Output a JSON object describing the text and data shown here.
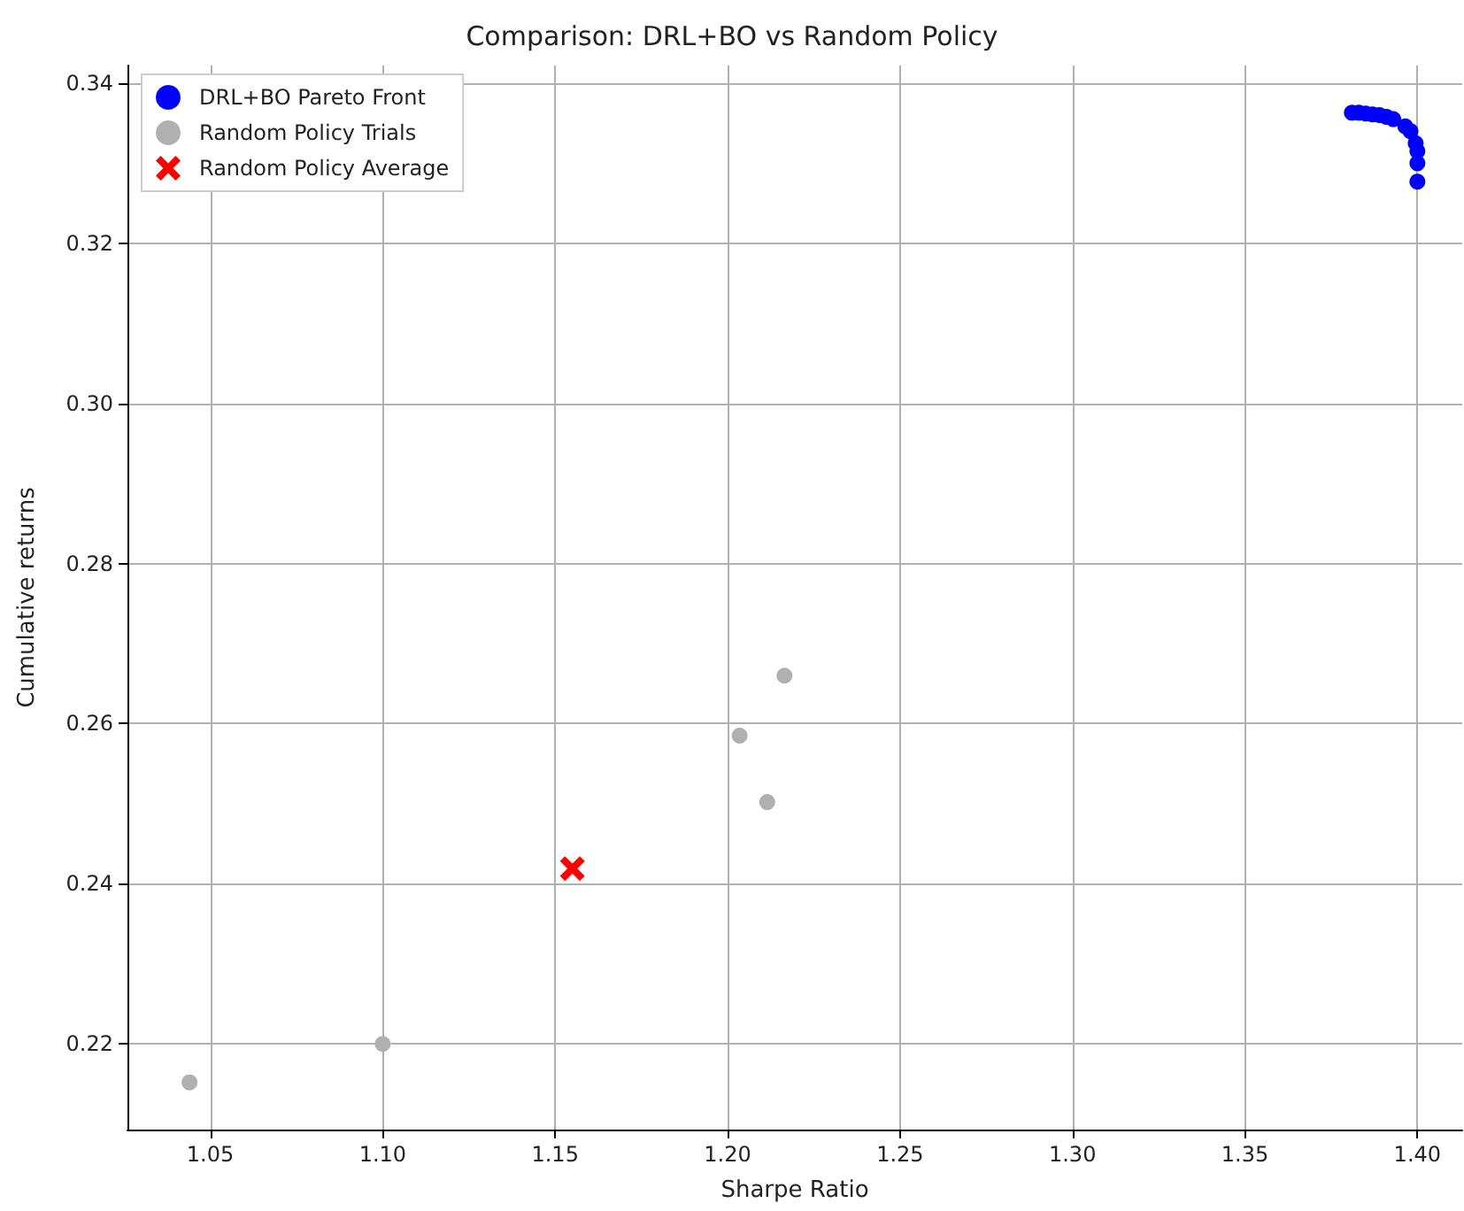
{
  "chart_data": {
    "type": "scatter",
    "title": "Comparison: DRL+BO vs Random Policy",
    "xlabel": "Sharpe Ratio",
    "ylabel": "Cumulative returns",
    "xlim": [
      1.026,
      1.413
    ],
    "ylim": [
      0.2093,
      0.3422
    ],
    "xticks": [
      1.05,
      {
        "value": 1.1,
        "label": "1.10"
      },
      1.15,
      {
        "value": 1.2,
        "label": "1.20"
      },
      1.25,
      {
        "value": 1.3,
        "label": "1.30"
      },
      1.35,
      {
        "value": 1.4,
        "label": "1.40"
      }
    ],
    "yticks": [
      0.22,
      0.24,
      0.26,
      0.28,
      {
        "value": 0.3,
        "label": "0.30"
      },
      0.32,
      0.34
    ],
    "grid": true,
    "legend": "top left",
    "series": [
      {
        "name": "DRL+BO Pareto Front",
        "color": "#0000ff",
        "marker": "circle",
        "x": [
          1.381,
          1.383,
          1.385,
          1.387,
          1.389,
          1.391,
          1.393,
          1.3965,
          1.398,
          1.3995,
          1.4,
          1.4,
          1.4
        ],
        "values": [
          0.3363,
          0.3363,
          0.3362,
          0.3361,
          0.336,
          0.3358,
          0.3355,
          0.3346,
          0.334,
          0.3325,
          0.3315,
          0.33,
          0.3277
        ]
      },
      {
        "name": "Random Policy Trials",
        "color": "#b0b0b0",
        "marker": "circle",
        "x": [
          1.044,
          1.1,
          1.2035,
          1.2165,
          1.2115
        ],
        "values": [
          0.2152,
          0.22,
          0.2585,
          0.266,
          0.2502
        ]
      },
      {
        "name": "Random Policy Average",
        "color": "#ff0000",
        "marker": "cross",
        "x": [
          1.155
        ],
        "values": [
          0.2419
        ]
      }
    ]
  }
}
